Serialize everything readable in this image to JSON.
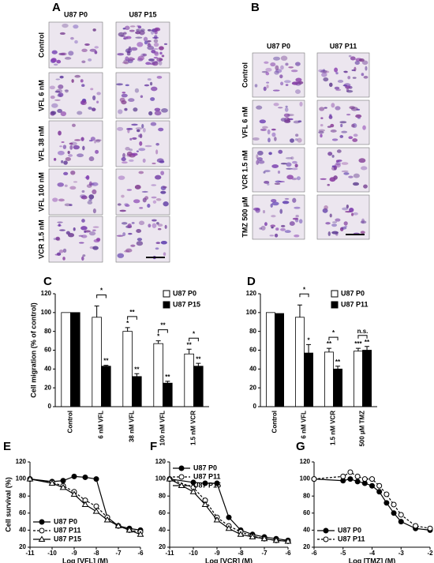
{
  "image_panels": [
    {
      "label": "A",
      "columns": [
        "U87 P0",
        "U87 P15"
      ],
      "rows": [
        "Control",
        "VFL 6 nM",
        "VFL 38 nM",
        "VFL 100 nM",
        "VCR 1.5 nM"
      ]
    },
    {
      "label": "B",
      "columns": [
        "U87 P0",
        "U87 P11"
      ],
      "rows": [
        "Control",
        "VFL 6 nM",
        "VCR 1.5 nM",
        "TMZ 500 µM"
      ]
    }
  ],
  "chart_data": [
    {
      "type": "bar",
      "panel_label": "C",
      "y_label": "Cell migration (% of control)",
      "categories": [
        "Control",
        "6 nM VFL",
        "38 nM VFL",
        "100 nM VFL",
        "1.5 nM VCR"
      ],
      "series": [
        {
          "name": "U87 P0",
          "color": "#ffffff",
          "values": [
            100,
            95,
            80,
            67,
            56
          ],
          "errors": [
            null,
            12,
            4,
            3,
            5
          ],
          "sig_labels": [
            null,
            null,
            "*",
            "*",
            "**"
          ]
        },
        {
          "name": "U87 P15",
          "color": "#000000",
          "values": [
            100,
            43,
            32,
            25,
            43
          ],
          "errors": [
            null,
            1,
            3,
            2,
            3
          ],
          "sig_labels": [
            null,
            "**",
            "**",
            "**",
            "**"
          ]
        }
      ],
      "brackets": [
        null,
        "*",
        "**",
        "**",
        "*"
      ],
      "ylim": [
        0,
        120
      ],
      "yticks": [
        0,
        20,
        40,
        60,
        80,
        100,
        120
      ],
      "legend": "upper right"
    },
    {
      "type": "bar",
      "panel_label": "D",
      "categories": [
        "Control",
        "6 nM VFL",
        "1.5 nM VCR",
        "500 µM TMZ"
      ],
      "series": [
        {
          "name": "U87 P0",
          "color": "#ffffff",
          "values": [
            100,
            95,
            58,
            59
          ],
          "errors": [
            null,
            13,
            4,
            3
          ],
          "sig_labels": [
            null,
            null,
            "**",
            "***"
          ]
        },
        {
          "name": "U87 P11",
          "color": "#000000",
          "values": [
            99,
            57,
            40,
            60
          ],
          "errors": [
            null,
            9,
            3,
            4
          ],
          "sig_labels": [
            null,
            "*",
            "**",
            "**"
          ]
        }
      ],
      "brackets": [
        null,
        "*",
        "*",
        "n.s."
      ],
      "ylim": [
        0,
        120
      ],
      "yticks": [
        0,
        20,
        40,
        60,
        80,
        100,
        120
      ],
      "legend": "upper right"
    },
    {
      "type": "line",
      "panel_label": "E",
      "y_label": "Cell survival (%)",
      "x_label": "Log [VFL] (M)",
      "x": [
        -11,
        -10,
        -9.5,
        -9,
        -8.5,
        -8,
        -7.5,
        -7,
        -6.5,
        -6
      ],
      "series": [
        {
          "name": "U87 P0",
          "color": "#000000",
          "dashed": false,
          "marker": "circle",
          "marker_filled": true,
          "values": [
            100,
            97,
            98,
            103,
            102,
            100,
            55,
            45,
            42,
            40
          ]
        },
        {
          "name": "U87 P11",
          "color": "#000000",
          "dashed": true,
          "marker": "circle",
          "marker_filled": false,
          "values": [
            100,
            96,
            92,
            85,
            75,
            68,
            55,
            45,
            40,
            38
          ]
        },
        {
          "name": "U87 P15",
          "color": "#000000",
          "dashed": false,
          "marker": "triangle",
          "marker_filled": false,
          "values": [
            100,
            95,
            90,
            82,
            70,
            62,
            52,
            45,
            40,
            35
          ]
        }
      ],
      "xlim": [
        -11,
        -6
      ],
      "xticks": [
        -11,
        -10,
        -9,
        -8,
        -7,
        -6
      ],
      "ylim": [
        20,
        120
      ],
      "yticks": [
        20,
        40,
        60,
        80,
        100,
        120
      ],
      "legend": "lower left"
    },
    {
      "type": "line",
      "panel_label": "F",
      "x_label": "Log [VCR] (M)",
      "x": [
        -11,
        -10,
        -9.5,
        -9,
        -8.5,
        -8,
        -7.5,
        -7,
        -6.5,
        -6
      ],
      "series": [
        {
          "name": "U87 P0",
          "color": "#000000",
          "dashed": false,
          "marker": "circle",
          "marker_filled": true,
          "values": [
            100,
            96,
            95,
            95,
            55,
            40,
            35,
            32,
            30,
            28
          ]
        },
        {
          "name": "U87 P11",
          "color": "#000000",
          "dashed": true,
          "marker": "circle",
          "marker_filled": false,
          "values": [
            100,
            90,
            75,
            55,
            45,
            38,
            33,
            30,
            28,
            27
          ]
        },
        {
          "name": "U87 P15",
          "color": "#000000",
          "dashed": false,
          "marker": "triangle",
          "marker_filled": false,
          "values": [
            100,
            85,
            70,
            52,
            42,
            35,
            32,
            30,
            28,
            27
          ]
        }
      ],
      "xlim": [
        -11,
        -6
      ],
      "xticks": [
        -11,
        -10,
        -9,
        -8,
        -7,
        -6
      ],
      "ylim": [
        20,
        120
      ],
      "yticks": [
        20,
        40,
        60,
        80,
        100,
        120
      ],
      "legend": "upper left"
    },
    {
      "type": "line",
      "panel_label": "G",
      "x_label": "Log [TMZ] (M)",
      "x": [
        -6,
        -5,
        -4.75,
        -4.5,
        -4.25,
        -4,
        -3.75,
        -3.5,
        -3.25,
        -3,
        -2.5,
        -2
      ],
      "series": [
        {
          "name": "U87 P0",
          "color": "#000000",
          "dashed": false,
          "marker": "circle",
          "marker_filled": true,
          "values": [
            100,
            98,
            100,
            97,
            95,
            92,
            85,
            72,
            60,
            50,
            42,
            40
          ]
        },
        {
          "name": "U87 P11",
          "color": "#000000",
          "dashed": true,
          "marker": "circle",
          "marker_filled": false,
          "values": [
            100,
            103,
            108,
            103,
            100,
            100,
            92,
            82,
            70,
            58,
            45,
            42
          ]
        }
      ],
      "xlim": [
        -6,
        -2
      ],
      "xticks": [
        -6,
        -5,
        -4,
        -3,
        -2
      ],
      "ylim": [
        20,
        120
      ],
      "yticks": [
        20,
        40,
        60,
        80,
        100,
        120
      ],
      "legend": "lower left"
    }
  ]
}
